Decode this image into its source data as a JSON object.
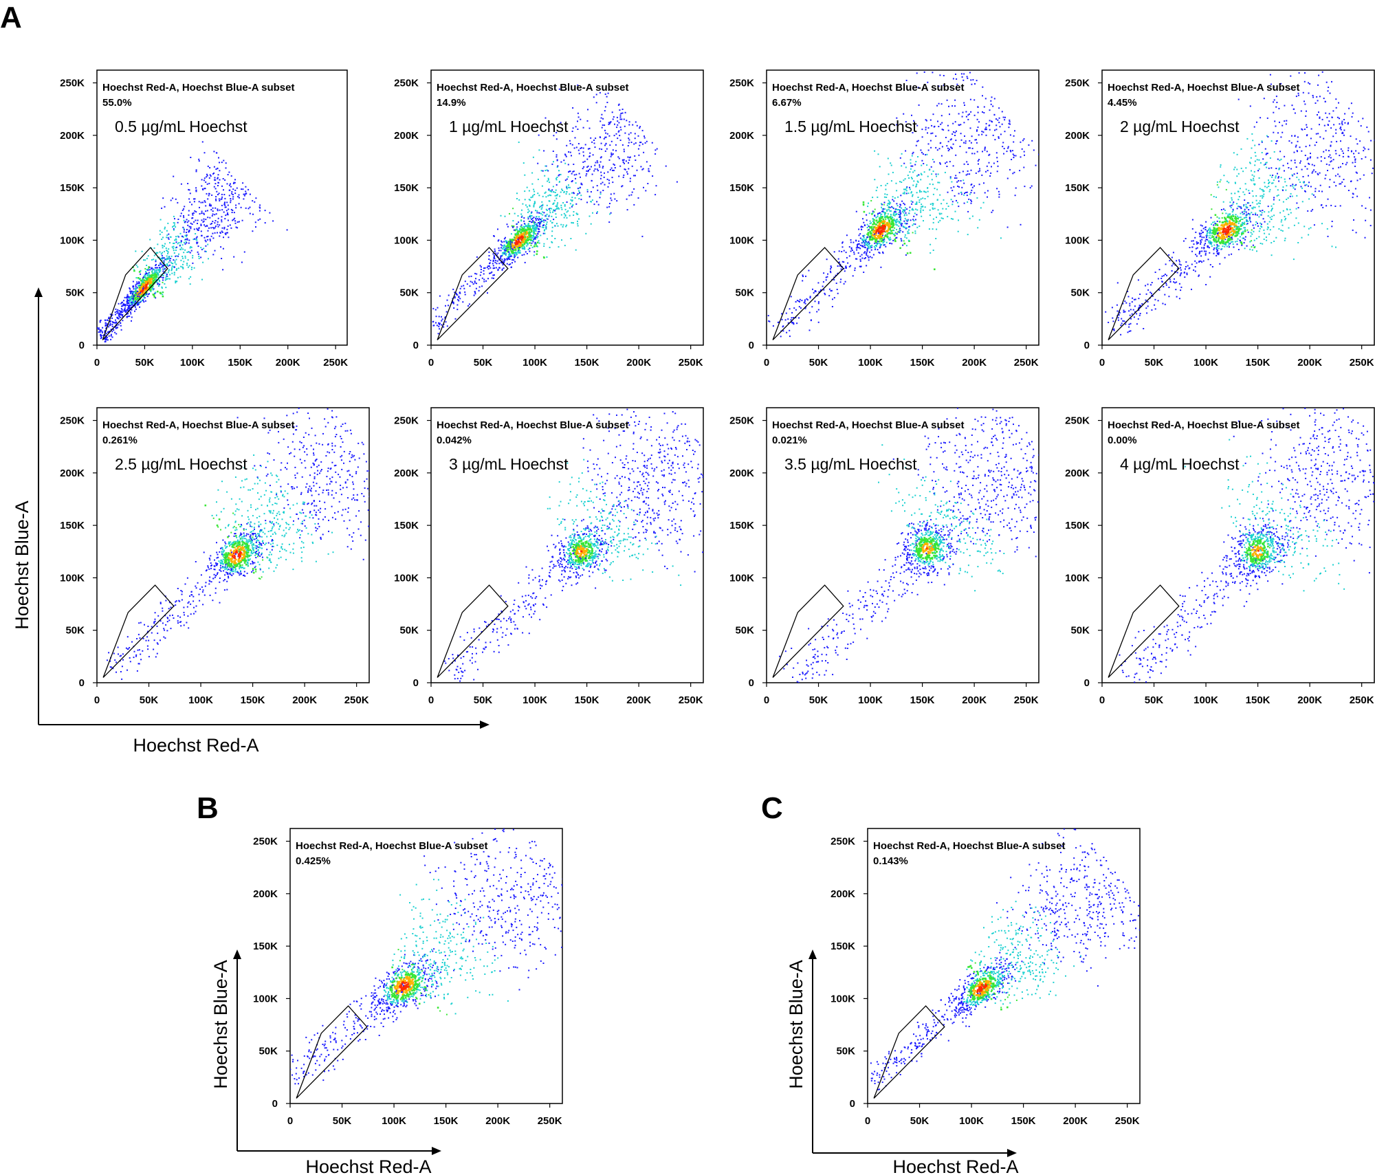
{
  "panel_letters": [
    "A",
    "B",
    "C"
  ],
  "axis_labels": {
    "x": "Hoechst Red-A",
    "y": "Hoechst Blue-A"
  },
  "subset_label": "Hoechst Red-A, Hoechst Blue-A subset",
  "tick_labels": [
    "0",
    "50K",
    "100K",
    "150K",
    "200K",
    "250K"
  ],
  "colors": {
    "density_low": "#1a1aff",
    "density_mid": "#19d0d0",
    "density_midhigh": "#39e636",
    "density_high": "#ffb000",
    "density_peak": "#ff2a00",
    "gate": "#000000"
  },
  "chart_data": [
    {
      "id": "A1",
      "type": "scatter",
      "panel": "A",
      "concentration": "0.5 µg/mL Hoechst",
      "gate_percent": "55.0%",
      "xlim": [
        0,
        262144
      ],
      "ylim": [
        0,
        262144
      ],
      "gate_polygon": [
        [
          6000,
          5000
        ],
        [
          30000,
          67000
        ],
        [
          56000,
          93000
        ],
        [
          74000,
          73000
        ]
      ],
      "population": {
        "center": [
          50000,
          55000
        ],
        "spread_main": 50000,
        "spread_perp": 9000,
        "tail_to": [
          150000,
          160000
        ],
        "peak_density": "high"
      }
    },
    {
      "id": "A2",
      "type": "scatter",
      "panel": "A",
      "concentration": "1 µg/mL Hoechst",
      "gate_percent": "14.9%",
      "xlim": [
        0,
        262144
      ],
      "ylim": [
        0,
        262144
      ],
      "gate_polygon": [
        [
          6000,
          5000
        ],
        [
          30000,
          67000
        ],
        [
          56000,
          93000
        ],
        [
          74000,
          73000
        ]
      ],
      "population": {
        "center": [
          85000,
          100000
        ],
        "spread_main": 45000,
        "spread_perp": 12000,
        "tail_to": [
          200000,
          210000
        ],
        "peak_density": "high"
      }
    },
    {
      "id": "A3",
      "type": "scatter",
      "panel": "A",
      "concentration": "1.5 µg/mL Hoechst",
      "gate_percent": "6.67%",
      "xlim": [
        0,
        262144
      ],
      "ylim": [
        0,
        262144
      ],
      "gate_polygon": [
        [
          6000,
          5000
        ],
        [
          30000,
          67000
        ],
        [
          56000,
          93000
        ],
        [
          74000,
          73000
        ]
      ],
      "population": {
        "center": [
          110000,
          110000
        ],
        "spread_main": 45000,
        "spread_perp": 16000,
        "tail_to": [
          230000,
          225000
        ],
        "peak_density": "high"
      }
    },
    {
      "id": "A4",
      "type": "scatter",
      "panel": "A",
      "concentration": "2 µg/mL Hoechst",
      "gate_percent": "4.45%",
      "xlim": [
        0,
        262144
      ],
      "ylim": [
        0,
        262144
      ],
      "gate_polygon": [
        [
          6000,
          5000
        ],
        [
          30000,
          67000
        ],
        [
          56000,
          93000
        ],
        [
          74000,
          73000
        ]
      ],
      "population": {
        "center": [
          120000,
          110000
        ],
        "spread_main": 45000,
        "spread_perp": 18000,
        "tail_to": [
          250000,
          220000
        ],
        "peak_density": "high"
      }
    },
    {
      "id": "A5",
      "type": "scatter",
      "panel": "A",
      "concentration": "2.5 µg/mL Hoechst",
      "gate_percent": "0.261%",
      "xlim": [
        0,
        262144
      ],
      "ylim": [
        0,
        262144
      ],
      "gate_polygon": [
        [
          6000,
          5000
        ],
        [
          30000,
          67000
        ],
        [
          56000,
          93000
        ],
        [
          74000,
          73000
        ]
      ],
      "population": {
        "center": [
          135000,
          122000
        ],
        "spread_main": 40000,
        "spread_perp": 18000,
        "tail_to": [
          255000,
          230000
        ],
        "peak_density": "high"
      }
    },
    {
      "id": "A6",
      "type": "scatter",
      "panel": "A",
      "concentration": "3 µg/mL Hoechst",
      "gate_percent": "0.042%",
      "xlim": [
        0,
        262144
      ],
      "ylim": [
        0,
        262144
      ],
      "gate_polygon": [
        [
          6000,
          5000
        ],
        [
          30000,
          67000
        ],
        [
          56000,
          93000
        ],
        [
          74000,
          73000
        ]
      ],
      "population": {
        "center": [
          145000,
          125000
        ],
        "spread_main": 38000,
        "spread_perp": 20000,
        "tail_to": [
          260000,
          230000
        ],
        "peak_density": "medium"
      }
    },
    {
      "id": "A7",
      "type": "scatter",
      "panel": "A",
      "concentration": "3.5 µg/mL Hoechst",
      "gate_percent": "0.021%",
      "xlim": [
        0,
        262144
      ],
      "ylim": [
        0,
        262144
      ],
      "gate_polygon": [
        [
          6000,
          5000
        ],
        [
          30000,
          67000
        ],
        [
          56000,
          93000
        ],
        [
          74000,
          73000
        ]
      ],
      "population": {
        "center": [
          155000,
          128000
        ],
        "spread_main": 38000,
        "spread_perp": 22000,
        "tail_to": [
          260000,
          230000
        ],
        "peak_density": "medium"
      }
    },
    {
      "id": "A8",
      "type": "scatter",
      "panel": "A",
      "concentration": "4 µg/mL Hoechst",
      "gate_percent": "0.00%",
      "xlim": [
        0,
        262144
      ],
      "ylim": [
        0,
        262144
      ],
      "gate_polygon": [
        [
          6000,
          5000
        ],
        [
          30000,
          67000
        ],
        [
          56000,
          93000
        ],
        [
          74000,
          73000
        ]
      ],
      "population": {
        "center": [
          150000,
          125000
        ],
        "spread_main": 40000,
        "spread_perp": 22000,
        "tail_to": [
          262000,
          235000
        ],
        "peak_density": "medium"
      }
    },
    {
      "id": "B",
      "type": "scatter",
      "panel": "B",
      "concentration": "",
      "gate_percent": "0.425%",
      "xlim": [
        0,
        262144
      ],
      "ylim": [
        0,
        262144
      ],
      "gate_polygon": [
        [
          6000,
          5000
        ],
        [
          30000,
          67000
        ],
        [
          56000,
          93000
        ],
        [
          74000,
          73000
        ]
      ],
      "population": {
        "center": [
          110000,
          112000
        ],
        "spread_main": 45000,
        "spread_perp": 18000,
        "tail_to": [
          255000,
          225000
        ],
        "peak_density": "high"
      }
    },
    {
      "id": "C",
      "type": "scatter",
      "panel": "C",
      "concentration": "",
      "gate_percent": "0.143%",
      "xlim": [
        0,
        262144
      ],
      "ylim": [
        0,
        262144
      ],
      "gate_polygon": [
        [
          6000,
          5000
        ],
        [
          30000,
          67000
        ],
        [
          56000,
          93000
        ],
        [
          74000,
          73000
        ]
      ],
      "population": {
        "center": [
          110000,
          110000
        ],
        "spread_main": 45000,
        "spread_perp": 14000,
        "tail_to": [
          240000,
          220000
        ],
        "peak_density": "high"
      }
    }
  ]
}
